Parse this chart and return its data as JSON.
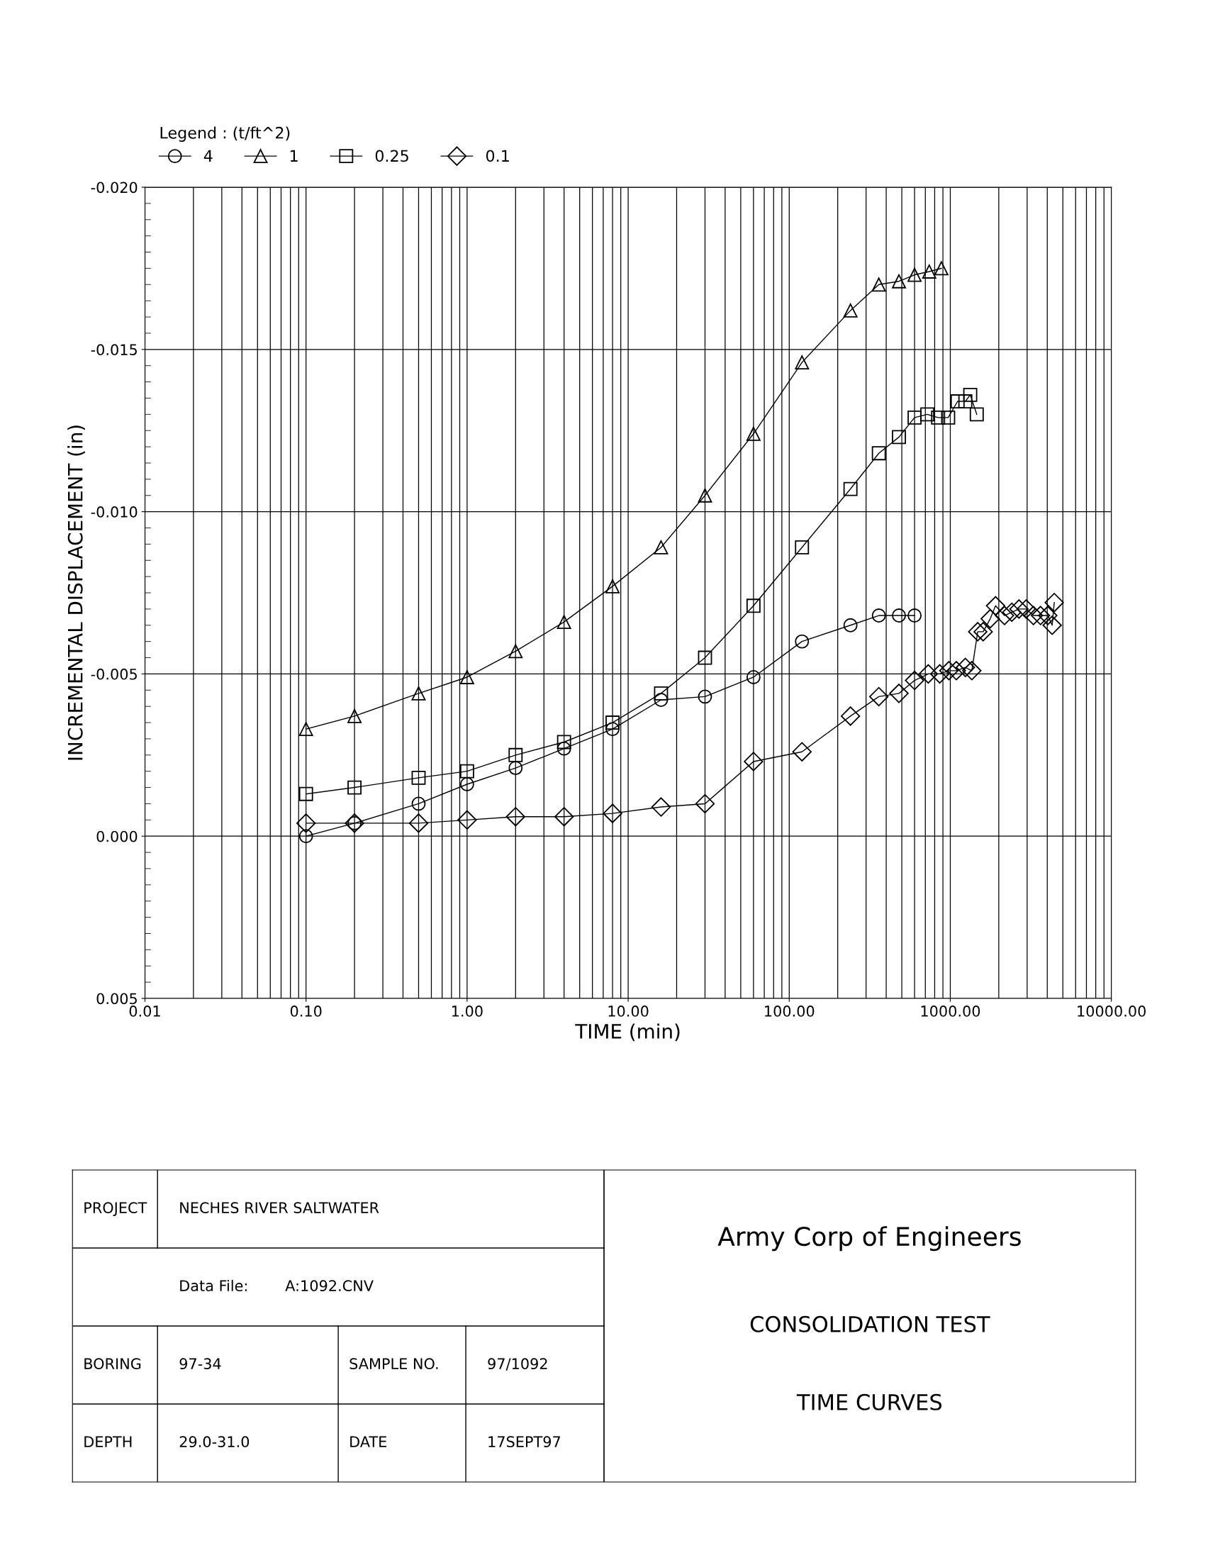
{
  "chart_data": {
    "type": "line",
    "title": "CONSOLIDATION TEST",
    "subtitle": "TIME CURVES",
    "xlabel": "TIME (min)",
    "ylabel": "INCREMENTAL DISPLACEMENT (in)",
    "legend_title": "Legend : (t/ft^2)",
    "log": "x",
    "grid": true,
    "legend": "top",
    "line_style": "solid",
    "xlim": [
      0.01,
      10000
    ],
    "xticks": [
      {
        "value": 0.01,
        "label": "0.01"
      },
      {
        "value": 0.1,
        "label": "0.10"
      },
      {
        "value": 1,
        "label": "1.00"
      },
      {
        "value": 10,
        "label": "10.00"
      },
      {
        "value": 100,
        "label": "100.00"
      },
      {
        "value": 1000,
        "label": "1000.00"
      },
      {
        "value": 10000,
        "label": "10000.00"
      }
    ],
    "ylim": [
      0.005,
      -0.02
    ],
    "yticks": [
      {
        "value": -0.02,
        "label": "-0.020"
      },
      {
        "value": -0.015,
        "label": "-0.015"
      },
      {
        "value": -0.01,
        "label": "-0.010"
      },
      {
        "value": -0.005,
        "label": "-0.005"
      },
      {
        "value": 0,
        "label": "0.000"
      },
      {
        "value": 0.005,
        "label": "0.005"
      }
    ],
    "series": [
      {
        "name": "4",
        "color": "#000000",
        "marker": "circle",
        "x": [
          0.1,
          0.2,
          0.5,
          1,
          2,
          4,
          8,
          16,
          30,
          60,
          120,
          240,
          360,
          480,
          600
        ],
        "values": [
          0.0,
          -0.0004,
          -0.001,
          -0.0016,
          -0.0021,
          -0.0027,
          -0.0033,
          -0.0042,
          -0.0043,
          -0.0049,
          -0.006,
          -0.0065,
          -0.0068,
          -0.0068,
          -0.0068
        ]
      },
      {
        "name": "1",
        "color": "#000000",
        "marker": "triangle",
        "x": [
          0.1,
          0.2,
          0.5,
          1,
          2,
          4,
          8,
          16,
          30,
          60,
          120,
          240,
          360,
          480,
          600,
          740,
          880
        ],
        "values": [
          -0.0033,
          -0.0037,
          -0.0044,
          -0.0049,
          -0.0057,
          -0.0066,
          -0.0077,
          -0.0089,
          -0.0105,
          -0.0124,
          -0.0146,
          -0.0162,
          -0.017,
          -0.0171,
          -0.0173,
          -0.0174,
          -0.0175
        ]
      },
      {
        "name": "0.25",
        "color": "#000000",
        "marker": "square",
        "x": [
          0.1,
          0.2,
          0.5,
          1,
          2,
          4,
          8,
          16,
          30,
          60,
          120,
          240,
          360,
          480,
          600,
          720,
          840,
          970,
          1110,
          1240,
          1330,
          1460
        ],
        "values": [
          -0.0013,
          -0.0015,
          -0.0018,
          -0.002,
          -0.0025,
          -0.0029,
          -0.0035,
          -0.0044,
          -0.0055,
          -0.0071,
          -0.0089,
          -0.0107,
          -0.0118,
          -0.0123,
          -0.0129,
          -0.013,
          -0.0129,
          -0.0129,
          -0.0134,
          -0.0134,
          -0.0136,
          -0.013
        ]
      },
      {
        "name": "0.1",
        "color": "#000000",
        "marker": "diamond",
        "x": [
          0.1,
          0.2,
          0.5,
          1,
          2,
          4,
          8,
          16,
          30,
          60,
          120,
          240,
          360,
          480,
          600,
          730,
          860,
          980,
          1090,
          1240,
          1360,
          1480,
          1600,
          1770,
          1910,
          2170,
          2410,
          2670,
          2960,
          3280,
          3630,
          4030,
          4290,
          4420
        ],
        "values": [
          -0.0004,
          -0.0004,
          -0.0004,
          -0.0005,
          -0.0006,
          -0.0006,
          -0.0007,
          -0.0009,
          -0.001,
          -0.0023,
          -0.0026,
          -0.0037,
          -0.0043,
          -0.0044,
          -0.0048,
          -0.005,
          -0.005,
          -0.0051,
          -0.0051,
          -0.0052,
          -0.0051,
          -0.0063,
          -0.0063,
          -0.0067,
          -0.0071,
          -0.0068,
          -0.0069,
          -0.007,
          -0.007,
          -0.0068,
          -0.0068,
          -0.0068,
          -0.0065,
          -0.0072
        ]
      }
    ],
    "annotations": [
      "Army Corp of Engineers",
      "PROJECT",
      "NECHES RIVER SALTWATER",
      "Data File:",
      "A:1092.CNV",
      "BORING",
      "97-34",
      "SAMPLE NO.",
      "97/1092",
      "DEPTH",
      "29.0-31.0",
      "DATE",
      "17SEPT97"
    ]
  }
}
